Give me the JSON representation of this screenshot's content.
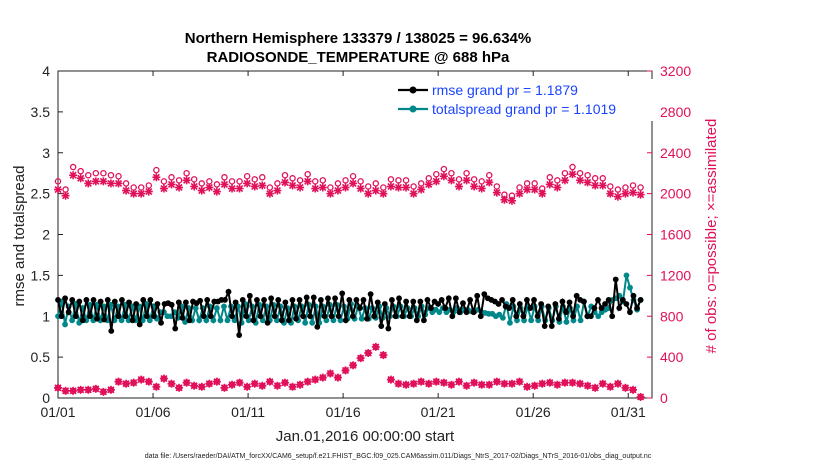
{
  "chart_data": {
    "type": "line",
    "title": "Northern Hemisphere 133379 / 138025 = 96.634%",
    "subtitle": "RADIOSONDE_TEMPERATURE @ 688 hPa",
    "xlabel": "Jan.01,2016 00:00:00 start",
    "ylabel": "rmse and totalspread",
    "y2label": "# of obs: o=possible; ×=assimilated",
    "footer": "data file: /Users/raeder/DAI/ATM_forcXX/CAM6_setup/f.e21.FHIST_BGC.f09_025.CAM6assim.011/Diags_NtrS_2017-02/Diags_NTrS_2016-01/obs_diag_output.nc",
    "ylim": [
      0,
      4
    ],
    "y2lim": [
      0,
      3200
    ],
    "xlim": [
      1,
      32.25
    ],
    "xticks": [
      {
        "v": 1,
        "label": "01/01"
      },
      {
        "v": 6,
        "label": "01/06"
      },
      {
        "v": 11,
        "label": "01/11"
      },
      {
        "v": 16,
        "label": "01/16"
      },
      {
        "v": 21,
        "label": "01/21"
      },
      {
        "v": 26,
        "label": "01/26"
      },
      {
        "v": 31,
        "label": "01/31"
      }
    ],
    "yticks": [
      "0",
      "0.5",
      "1",
      "1.5",
      "2",
      "2.5",
      "3",
      "3.5",
      "4"
    ],
    "y2ticks": [
      "0",
      "400",
      "800",
      "1200",
      "1600",
      "2000",
      "2400",
      "2800",
      "3200"
    ],
    "legend": {
      "rmse": "rmse grand pr = 1.1879",
      "spread": "totalspread grand pr = 1.1019"
    },
    "colors": {
      "rmse": "#000000",
      "spread": "#00878a",
      "obs": "#e0105a",
      "axis": "#222222"
    },
    "series": [
      {
        "name": "rmse",
        "values": [
          1.2,
          1.0,
          1.22,
          1.05,
          1.2,
          1.0,
          1.18,
          0.95,
          1.2,
          1.0,
          1.2,
          0.97,
          1.18,
          0.96,
          1.2,
          0.82,
          1.18,
          1.0,
          1.2,
          1.0,
          1.17,
          0.95,
          1.15,
          0.9,
          1.2,
          1.0,
          1.2,
          1.0,
          1.15,
          0.92,
          1.15,
          1.16,
          1.14,
          0.85,
          1.17,
          0.98,
          1.17,
          0.95,
          1.18,
          1.16,
          1.19,
          1.0,
          1.2,
          1.0,
          1.18,
          1.18,
          1.2,
          1.2,
          1.3,
          1.0,
          1.17,
          0.77,
          1.2,
          1.0,
          1.25,
          0.95,
          1.2,
          1.0,
          1.2,
          0.92,
          1.22,
          1.0,
          1.2,
          0.95,
          1.17,
          0.95,
          1.2,
          0.97,
          1.2,
          1.0,
          1.23,
          1.0,
          1.23,
          0.87,
          1.2,
          1.0,
          1.22,
          1.0,
          1.22,
          1.0,
          1.28,
          0.95,
          1.2,
          1.0,
          1.2,
          1.1,
          1.2,
          0.97,
          1.27,
          1.0,
          1.17,
          0.88,
          1.15,
          0.85,
          1.2,
          1.0,
          1.22,
          1.0,
          1.18,
          1.0,
          1.18,
          0.95,
          1.18,
          0.95,
          1.2,
          1.1,
          1.18,
          1.15,
          1.2,
          1.1,
          1.22,
          1.0,
          1.22,
          1.05,
          1.16,
          1.05,
          1.2,
          1.05,
          1.25,
          1.0,
          1.27,
          1.22,
          1.2,
          1.18,
          1.15,
          1.2,
          1.12,
          1.1,
          1.2,
          1.0,
          1.15,
          1.0,
          1.2,
          1.1,
          1.2,
          1.0,
          1.15,
          0.88,
          1.12,
          0.88,
          1.15,
          0.97,
          1.18,
          1.05,
          1.17,
          1.0,
          1.25,
          1.2,
          1.18,
          1.0,
          1.0,
          1.1,
          1.2,
          1.1,
          1.15,
          1.2,
          1.0,
          1.45,
          1.1,
          1.2,
          1.15,
          1.05,
          1.25,
          1.1,
          1.2
        ],
        "obs_possible": [
          2120,
          2040,
          2260,
          2220,
          2180,
          2200,
          2200,
          2180,
          2170,
          2100,
          2060,
          2060,
          2080,
          2230,
          2120,
          2160,
          2130,
          2200,
          2140,
          2100,
          2120,
          2090,
          2160,
          2120,
          2120,
          2170,
          2140,
          2160,
          2060,
          2100,
          2180,
          2150,
          2130,
          2190,
          2120,
          2130,
          2060,
          2100,
          2130,
          2170,
          2120,
          2070,
          2100,
          2060,
          2140,
          2130,
          2130,
          2070,
          2100,
          2150,
          2190,
          2240,
          2200,
          2140,
          2200,
          2140,
          2120,
          2180,
          2070,
          1990,
          1980,
          2060,
          2100,
          2100,
          2050,
          2160,
          2130,
          2200,
          2260,
          2200,
          2180,
          2150,
          2150,
          2070,
          2040,
          2060,
          2080,
          2060
        ],
        "obs_assimilated": [
          2040,
          1980,
          2180,
          2150,
          2100,
          2120,
          2120,
          2100,
          2100,
          2030,
          2000,
          2000,
          2020,
          2160,
          2050,
          2090,
          2060,
          2130,
          2070,
          2030,
          2060,
          2020,
          2090,
          2050,
          2050,
          2100,
          2070,
          2080,
          2000,
          2030,
          2110,
          2080,
          2060,
          2120,
          2050,
          2060,
          2000,
          2030,
          2060,
          2100,
          2050,
          2000,
          2030,
          2000,
          2070,
          2060,
          2060,
          2000,
          2040,
          2090,
          2120,
          2170,
          2130,
          2070,
          2130,
          2070,
          2050,
          2110,
          2010,
          1940,
          1930,
          2000,
          2040,
          2040,
          2000,
          2090,
          2060,
          2130,
          2190,
          2130,
          2110,
          2080,
          2080,
          2000,
          1970,
          2000,
          2010,
          1990
        ]
      },
      {
        "name": "totalspread",
        "values": [
          1.0,
          1.18,
          0.9,
          1.12,
          0.95,
          1.15,
          0.92,
          1.1,
          0.95,
          1.14,
          0.95,
          1.14,
          0.95,
          1.12,
          0.95,
          1.14,
          0.95,
          1.12,
          0.95,
          1.14,
          0.95,
          1.12,
          0.95,
          1.12,
          0.95,
          1.15,
          0.95,
          1.12,
          0.97,
          1.05,
          1.05,
          1.0,
          1.0,
          1.05,
          0.98,
          1.12,
          0.93,
          1.1,
          0.95,
          1.1,
          0.95,
          1.1,
          0.95,
          1.12,
          0.95,
          1.1,
          0.95,
          1.12,
          0.95,
          1.12,
          0.95,
          1.12,
          0.92,
          1.15,
          0.95,
          1.12,
          0.92,
          1.14,
          0.95,
          1.12,
          0.95,
          1.14,
          0.95,
          1.12,
          0.92,
          1.1,
          0.92,
          1.12,
          0.95,
          1.12,
          0.92,
          1.14,
          0.92,
          1.12,
          0.92,
          1.12,
          0.95,
          1.14,
          0.95,
          1.14,
          0.95,
          1.12,
          0.97,
          1.15,
          0.97,
          1.12,
          0.97,
          1.1,
          0.97,
          1.1,
          0.98,
          1.12,
          0.98,
          1.1,
          1.0,
          1.12,
          1.0,
          1.12,
          1.0,
          1.1,
          1.0,
          1.1,
          1.0,
          1.12,
          1.02,
          1.1,
          1.05,
          1.08,
          1.05,
          1.1,
          1.05,
          1.08,
          1.05,
          1.1,
          1.05,
          1.08,
          1.08,
          1.06,
          1.06,
          1.08,
          1.05,
          1.04,
          1.03,
          1.03,
          1.0,
          1.02,
          0.98,
          1.15,
          0.92,
          1.12,
          0.95,
          1.1,
          0.95,
          1.12,
          0.95,
          1.12,
          0.95,
          1.12,
          0.95,
          1.1,
          0.95,
          1.12,
          0.93,
          1.12,
          0.93,
          1.1,
          0.95,
          1.12,
          0.95,
          1.18,
          1.0,
          1.12,
          1.05,
          1.0,
          1.05,
          1.08,
          1.1,
          1.2,
          1.22,
          1.25,
          1.18,
          1.5,
          1.35,
          1.2,
          1.08,
          1.2
        ]
      }
    ],
    "obs_low": [
      100,
      70,
      70,
      80,
      80,
      90,
      60,
      80,
      160,
      140,
      150,
      180,
      160,
      110,
      190,
      140,
      100,
      150,
      120,
      110,
      140,
      160,
      100,
      130,
      150,
      110,
      140,
      120,
      160,
      120,
      150,
      110,
      130,
      160,
      180,
      200,
      240,
      200,
      270,
      320,
      390,
      440,
      500,
      420,
      180,
      140,
      130,
      140,
      160,
      140,
      160,
      150,
      130,
      160,
      120,
      150,
      130,
      130,
      160,
      140,
      140,
      160,
      110,
      120,
      140,
      150,
      130,
      150,
      150,
      140,
      120,
      100,
      140,
      110,
      140,
      100,
      80,
      10
    ]
  }
}
